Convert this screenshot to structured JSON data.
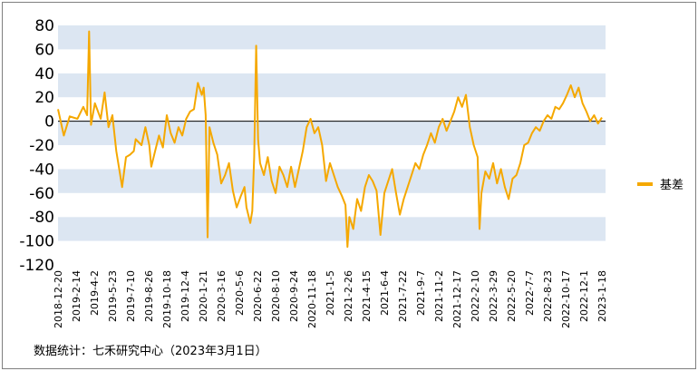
{
  "source_note": "数据统计：七禾研究中心（2023年3月1日）",
  "colors": {
    "series": "#F5A800",
    "band": "#DCE6F2",
    "background": "#FFFFFF",
    "zero_line": "#000000"
  },
  "chart_data": {
    "type": "line",
    "title": "",
    "xlabel": "",
    "ylabel": "",
    "ylim": [
      -120,
      80
    ],
    "yticks": [
      80,
      60,
      40,
      20,
      0,
      -20,
      -40,
      -60,
      -80,
      -100,
      -120
    ],
    "grid": "alternating horizontal bands",
    "legend": "right",
    "x_tick_labels": [
      "2018-12-20",
      "2019-2-14",
      "2019-4-2",
      "2019-5-23",
      "2019-7-10",
      "2019-8-26",
      "2019-10-18",
      "2019-12-4",
      "2020-1-21",
      "2020-3-16",
      "2020-5-6",
      "2020-6-22",
      "2020-8-10",
      "2020-9-24",
      "2020-11-18",
      "2021-1-5",
      "2021-2-26",
      "2021-4-15",
      "2021-6-4",
      "2021-7-22",
      "2021-9-7",
      "2021-11-2",
      "2021-12-17",
      "2022-2-10",
      "2022-3-29",
      "2022-5-20",
      "2022-7-7",
      "2022-8-23",
      "2022-10-17",
      "2022-12-1",
      "2023-1-18"
    ],
    "series": [
      {
        "name": "基差",
        "values": [
          [
            0,
            10
          ],
          [
            0.3,
            -12
          ],
          [
            0.6,
            4
          ],
          [
            1.0,
            2
          ],
          [
            1.3,
            12
          ],
          [
            1.5,
            5
          ],
          [
            1.6,
            75
          ],
          [
            1.7,
            -3
          ],
          [
            1.9,
            15
          ],
          [
            2.2,
            2
          ],
          [
            2.4,
            24
          ],
          [
            2.6,
            -5
          ],
          [
            2.8,
            5
          ],
          [
            3.0,
            -25
          ],
          [
            3.2,
            -45
          ],
          [
            3.3,
            -55
          ],
          [
            3.5,
            -30
          ],
          [
            3.7,
            -28
          ],
          [
            3.9,
            -25
          ],
          [
            4.0,
            -15
          ],
          [
            4.3,
            -20
          ],
          [
            4.5,
            -5
          ],
          [
            4.7,
            -20
          ],
          [
            4.8,
            -38
          ],
          [
            5.0,
            -25
          ],
          [
            5.2,
            -12
          ],
          [
            5.4,
            -22
          ],
          [
            5.6,
            5
          ],
          [
            5.8,
            -10
          ],
          [
            6.0,
            -18
          ],
          [
            6.2,
            -5
          ],
          [
            6.4,
            -12
          ],
          [
            6.6,
            2
          ],
          [
            6.8,
            8
          ],
          [
            7.0,
            10
          ],
          [
            7.2,
            32
          ],
          [
            7.4,
            22
          ],
          [
            7.5,
            28
          ],
          [
            7.6,
            5
          ],
          [
            7.7,
            -97
          ],
          [
            7.8,
            -5
          ],
          [
            8.0,
            -18
          ],
          [
            8.2,
            -28
          ],
          [
            8.4,
            -52
          ],
          [
            8.6,
            -45
          ],
          [
            8.8,
            -35
          ],
          [
            9.0,
            -58
          ],
          [
            9.2,
            -72
          ],
          [
            9.4,
            -63
          ],
          [
            9.6,
            -55
          ],
          [
            9.7,
            -72
          ],
          [
            9.9,
            -85
          ],
          [
            10.0,
            -75
          ],
          [
            10.1,
            -30
          ],
          [
            10.2,
            63
          ],
          [
            10.3,
            -15
          ],
          [
            10.4,
            -35
          ],
          [
            10.6,
            -45
          ],
          [
            10.8,
            -30
          ],
          [
            11.0,
            -50
          ],
          [
            11.2,
            -60
          ],
          [
            11.4,
            -38
          ],
          [
            11.6,
            -45
          ],
          [
            11.8,
            -55
          ],
          [
            12.0,
            -38
          ],
          [
            12.2,
            -55
          ],
          [
            12.4,
            -40
          ],
          [
            12.6,
            -25
          ],
          [
            12.8,
            -5
          ],
          [
            13.0,
            2
          ],
          [
            13.2,
            -10
          ],
          [
            13.4,
            -5
          ],
          [
            13.6,
            -20
          ],
          [
            13.8,
            -50
          ],
          [
            14.0,
            -35
          ],
          [
            14.2,
            -45
          ],
          [
            14.4,
            -55
          ],
          [
            14.6,
            -62
          ],
          [
            14.8,
            -70
          ],
          [
            14.9,
            -105
          ],
          [
            15.0,
            -80
          ],
          [
            15.2,
            -90
          ],
          [
            15.4,
            -65
          ],
          [
            15.6,
            -75
          ],
          [
            15.8,
            -55
          ],
          [
            16.0,
            -45
          ],
          [
            16.2,
            -50
          ],
          [
            16.4,
            -58
          ],
          [
            16.6,
            -95
          ],
          [
            16.8,
            -60
          ],
          [
            17.0,
            -50
          ],
          [
            17.2,
            -40
          ],
          [
            17.4,
            -60
          ],
          [
            17.6,
            -78
          ],
          [
            17.8,
            -65
          ],
          [
            18.0,
            -55
          ],
          [
            18.2,
            -45
          ],
          [
            18.4,
            -35
          ],
          [
            18.6,
            -40
          ],
          [
            18.8,
            -28
          ],
          [
            19.0,
            -20
          ],
          [
            19.2,
            -10
          ],
          [
            19.4,
            -18
          ],
          [
            19.6,
            -5
          ],
          [
            19.8,
            2
          ],
          [
            20.0,
            -8
          ],
          [
            20.2,
            0
          ],
          [
            20.4,
            8
          ],
          [
            20.6,
            20
          ],
          [
            20.8,
            12
          ],
          [
            21.0,
            22
          ],
          [
            21.2,
            -5
          ],
          [
            21.4,
            -20
          ],
          [
            21.6,
            -30
          ],
          [
            21.7,
            -90
          ],
          [
            21.8,
            -60
          ],
          [
            22.0,
            -42
          ],
          [
            22.2,
            -48
          ],
          [
            22.4,
            -35
          ],
          [
            22.6,
            -52
          ],
          [
            22.8,
            -40
          ],
          [
            23.0,
            -55
          ],
          [
            23.2,
            -65
          ],
          [
            23.4,
            -48
          ],
          [
            23.6,
            -45
          ],
          [
            23.8,
            -35
          ],
          [
            24.0,
            -20
          ],
          [
            24.2,
            -18
          ],
          [
            24.4,
            -10
          ],
          [
            24.6,
            -5
          ],
          [
            24.8,
            -8
          ],
          [
            25.0,
            0
          ],
          [
            25.2,
            5
          ],
          [
            25.4,
            2
          ],
          [
            25.6,
            12
          ],
          [
            25.8,
            10
          ],
          [
            26.0,
            15
          ],
          [
            26.2,
            22
          ],
          [
            26.4,
            30
          ],
          [
            26.6,
            20
          ],
          [
            26.8,
            28
          ],
          [
            27.0,
            15
          ],
          [
            27.2,
            8
          ],
          [
            27.4,
            0
          ],
          [
            27.6,
            5
          ],
          [
            27.8,
            -2
          ],
          [
            28.0,
            3
          ]
        ]
      }
    ]
  }
}
